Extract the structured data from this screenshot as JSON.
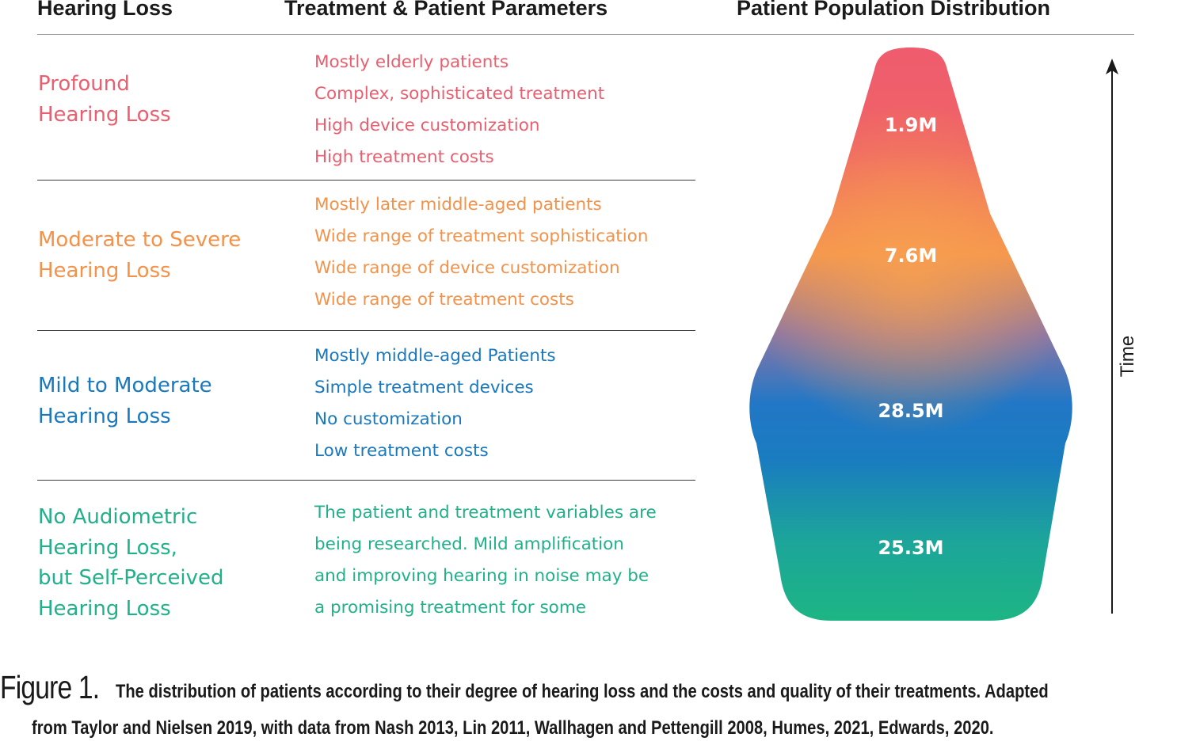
{
  "headers": {
    "col1": "Hearing Loss",
    "col2": "Treatment & Patient Parameters",
    "col3": "Patient Population Distribution"
  },
  "rows": [
    {
      "level_lines": [
        "Profound",
        "Hearing Loss"
      ],
      "params": [
        "Mostly elderly patients",
        "Complex, sophisticated treatment",
        "High device customization",
        "High treatment costs"
      ],
      "population": "1.9M",
      "color": "#e95f70"
    },
    {
      "level_lines": [
        "Moderate to Severe",
        "Hearing Loss"
      ],
      "params": [
        "Mostly later middle-aged patients",
        "Wide range of treatment sophistication",
        "Wide range of device customization",
        "Wide range of treatment costs"
      ],
      "population": "7.6M",
      "color": "#f3924a"
    },
    {
      "level_lines": [
        "Mild to Moderate",
        "Hearing Loss"
      ],
      "params": [
        "Mostly middle-aged Patients",
        "Simple treatment devices",
        "No customization",
        "Low treatment costs"
      ],
      "population": "28.5M",
      "color": "#1a78bd"
    },
    {
      "level_lines": [
        "No Audiometric",
        "Hearing Loss,",
        "but Self-Perceived",
        "Hearing Loss"
      ],
      "params": [
        "The patient and treatment variables are",
        "being researched. Mild amplification",
        "and improving hearing in noise may be",
        "a promising treatment for some"
      ],
      "population": "25.3M",
      "color": "#22b08a"
    }
  ],
  "axis": {
    "label": "Time"
  },
  "caption": {
    "figure_label": "Figure 1.",
    "line1": "The distribution of patients according to their degree of hearing loss and the costs and quality of their treatments. Adapted",
    "line2": "from Taylor and Nielsen 2019, with data from Nash 2013, Lin 2011, Wallhagen and Pettengill 2008, Humes, 2021, Edwards, 2020."
  }
}
